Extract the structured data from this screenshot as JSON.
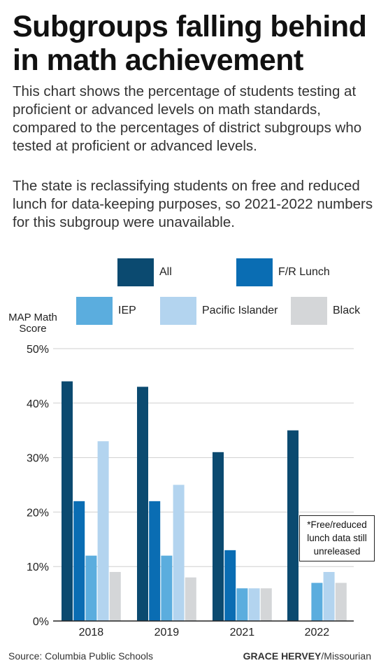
{
  "title": "Subgroups falling behind in math achievement",
  "description_1": "This chart shows the percentage of students testing at proficient or advanced levels on math standards, compared to the percentages of district subgroups who tested at proficient or advanced levels.",
  "description_2": "The state is reclassifying students on free and reduced lunch for data-keeping purposes, so 2021-2022 numbers for this subgroup were unavailable.",
  "note": "*Free/reduced lunch data still unreleased",
  "source_label": "Source:",
  "source_value": "Columbia Public Schools",
  "credit_name": "GRACE HERVEY",
  "credit_org": "/Missourian",
  "colors": {
    "All": "#0b4a70",
    "F/R Lunch": "#0a6db3",
    "IEP": "#5badde",
    "Pacific Islander": "#b3d4ef",
    "Black": "#d4d6d8"
  },
  "chart_data": {
    "type": "bar",
    "ylabel": "MAP Math Score",
    "xlabel": "",
    "ylim": [
      0,
      50
    ],
    "yticks": [
      "0%",
      "10%",
      "20%",
      "30%",
      "40%",
      "50%"
    ],
    "grid": true,
    "legend_position": "top",
    "categories": [
      "2018",
      "2019",
      "2021",
      "2022"
    ],
    "series": [
      {
        "name": "All",
        "values": [
          44,
          43,
          31,
          35
        ]
      },
      {
        "name": "F/R Lunch",
        "values": [
          22,
          22,
          13,
          null
        ]
      },
      {
        "name": "IEP",
        "values": [
          12,
          12,
          6,
          7
        ]
      },
      {
        "name": "Pacific Islander",
        "values": [
          33,
          25,
          6,
          9
        ]
      },
      {
        "name": "Black",
        "values": [
          9,
          8,
          6,
          7
        ]
      }
    ]
  }
}
